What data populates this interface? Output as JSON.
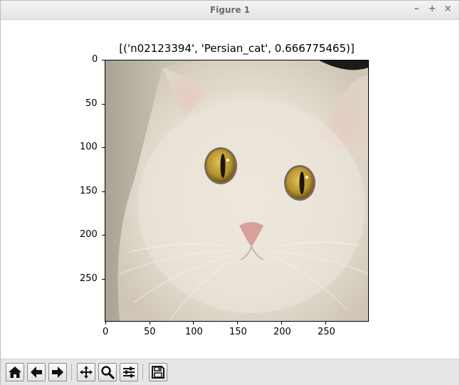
{
  "window": {
    "title": "Figure 1",
    "minimize_label": "–",
    "maximize_label": "+",
    "close_label": "×"
  },
  "figure": {
    "title": "[('n02123394', 'Persian_cat', 0.666775465)]",
    "image_subject": "white persian cat face",
    "x_ticks": [
      {
        "value": 0,
        "label": "0"
      },
      {
        "value": 50,
        "label": "50"
      },
      {
        "value": 100,
        "label": "100"
      },
      {
        "value": 150,
        "label": "150"
      },
      {
        "value": 200,
        "label": "200"
      },
      {
        "value": 250,
        "label": "250"
      }
    ],
    "y_ticks": [
      {
        "value": 0,
        "label": "0"
      },
      {
        "value": 50,
        "label": "50"
      },
      {
        "value": 100,
        "label": "100"
      },
      {
        "value": 150,
        "label": "150"
      },
      {
        "value": 200,
        "label": "200"
      },
      {
        "value": 250,
        "label": "250"
      }
    ],
    "image_extent": [
      0,
      299
    ],
    "colors": {
      "fur": "#e8e1d5",
      "background_wall": "#b9b4a6",
      "eye": "#c9a43a",
      "nose": "#d7a19a"
    }
  },
  "toolbar": {
    "buttons": [
      {
        "name": "home-button",
        "icon": "home-icon"
      },
      {
        "name": "back-button",
        "icon": "arrow-left-icon"
      },
      {
        "name": "forward-button",
        "icon": "arrow-right-icon"
      },
      {
        "name": "pan-button",
        "icon": "move-icon"
      },
      {
        "name": "zoom-button",
        "icon": "magnifier-icon"
      },
      {
        "name": "configure-subplots-button",
        "icon": "sliders-icon"
      },
      {
        "name": "save-button",
        "icon": "floppy-disk-icon"
      }
    ]
  }
}
